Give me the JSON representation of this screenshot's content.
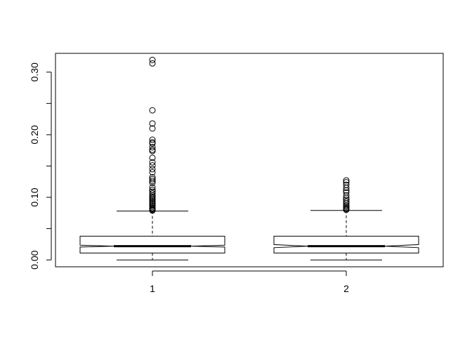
{
  "chart_data": {
    "type": "boxplot",
    "title": "",
    "xlabel": "",
    "ylabel": "",
    "ylim": [
      -0.011,
      0.33
    ],
    "y_ticks": [
      0.0,
      0.1,
      0.2,
      0.3
    ],
    "y_tick_labels": [
      "0.00",
      "0.10",
      "0.20",
      "0.30"
    ],
    "y_minor_ticks": [
      0.05,
      0.15,
      0.25
    ],
    "grid": false,
    "notched": true,
    "categories": [
      "1",
      "2"
    ],
    "series": [
      {
        "name": "1",
        "whisker_low": 0.0,
        "q1": 0.011,
        "median": 0.022,
        "q3": 0.038,
        "whisker_high": 0.078,
        "notch_low": 0.0205,
        "notch_high": 0.0235,
        "outliers": [
          0.3195,
          0.314,
          0.239,
          0.218,
          0.21,
          0.192,
          0.188,
          0.186,
          0.18,
          0.176,
          0.174,
          0.163,
          0.156,
          0.151,
          0.145,
          0.14,
          0.132,
          0.129,
          0.126,
          0.123,
          0.116,
          0.112,
          0.109,
          0.106,
          0.103,
          0.101,
          0.099,
          0.097,
          0.095,
          0.093,
          0.091,
          0.089,
          0.087,
          0.085,
          0.083,
          0.0815,
          0.08,
          0.079
        ]
      },
      {
        "name": "2",
        "whisker_low": 0.0,
        "q1": 0.011,
        "median": 0.022,
        "q3": 0.038,
        "whisker_high": 0.079,
        "notch_low": 0.0195,
        "notch_high": 0.0245,
        "outliers": [
          0.127,
          0.124,
          0.12,
          0.115,
          0.111,
          0.108,
          0.103,
          0.099,
          0.096,
          0.093,
          0.09,
          0.087,
          0.085,
          0.083,
          0.0815,
          0.08
        ]
      }
    ]
  }
}
